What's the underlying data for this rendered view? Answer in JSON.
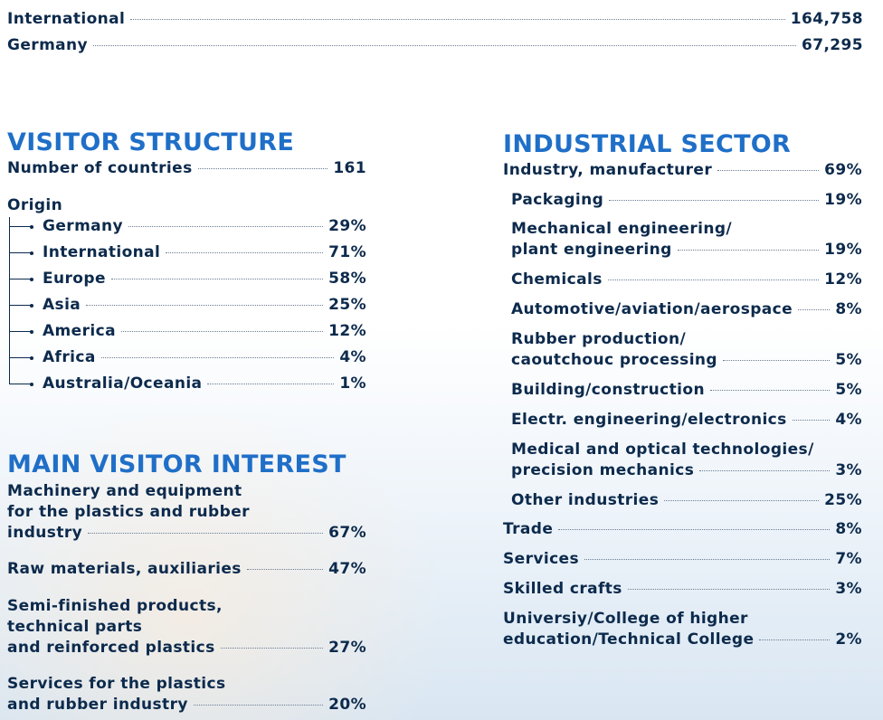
{
  "visitors": {
    "international": {
      "label": "International",
      "value": "164,758"
    },
    "germany": {
      "label": "Germany",
      "value": "67,295"
    }
  },
  "visitor_structure": {
    "heading": "VISITOR STRUCTURE",
    "countries": {
      "label": "Number of countries",
      "value": "161"
    },
    "origin_label": "Origin",
    "origin": [
      {
        "label": "Germany",
        "value": "29%"
      },
      {
        "label": "International",
        "value": "71%"
      },
      {
        "label": "Europe",
        "value": "58%"
      },
      {
        "label": "Asia",
        "value": "25%"
      },
      {
        "label": "America",
        "value": "12%"
      },
      {
        "label": "Africa",
        "value": "4%"
      },
      {
        "label": "Australia/Oceania",
        "value": "1%"
      }
    ]
  },
  "main_interest": {
    "heading": "MAIN VISITOR INTEREST",
    "items": [
      {
        "lines": [
          "Machinery and equipment",
          "for the plastics and rubber",
          "industry"
        ],
        "value": "67%"
      },
      {
        "lines": [
          "Raw materials, auxiliaries"
        ],
        "value": "47%"
      },
      {
        "lines": [
          "Semi-finished products,",
          "technical parts",
          "and reinforced plastics"
        ],
        "value": "27%"
      },
      {
        "lines": [
          "Services for the plastics",
          "and rubber industry"
        ],
        "value": "20%"
      }
    ]
  },
  "industrial_sector": {
    "heading": "INDUSTRIAL SECTOR",
    "industry": {
      "label": "Industry, manufacturer",
      "value": "69%"
    },
    "sub": [
      {
        "lines": [
          "Packaging"
        ],
        "value": "19%"
      },
      {
        "lines": [
          "Mechanical engineering/",
          "plant engineering"
        ],
        "value": "19%"
      },
      {
        "lines": [
          "Chemicals"
        ],
        "value": "12%"
      },
      {
        "lines": [
          "Automotive/aviation/aerospace"
        ],
        "value": "8%"
      },
      {
        "lines": [
          "Rubber production/",
          "caoutchouc processing"
        ],
        "value": "5%"
      },
      {
        "lines": [
          "Building/construction"
        ],
        "value": "5%"
      },
      {
        "lines": [
          "Electr. engineering/electronics"
        ],
        "value": "4%"
      },
      {
        "lines": [
          "Medical and optical technologies/",
          "precision mechanics"
        ],
        "value": "3%"
      },
      {
        "lines": [
          "Other industries"
        ],
        "value": "25%"
      }
    ],
    "other": [
      {
        "lines": [
          "Trade"
        ],
        "value": "8%"
      },
      {
        "lines": [
          "Services"
        ],
        "value": "7%"
      },
      {
        "lines": [
          "Skilled crafts"
        ],
        "value": "3%"
      },
      {
        "lines": [
          "Universiy/College of higher",
          "education/Technical College"
        ],
        "value": "2%"
      }
    ]
  }
}
